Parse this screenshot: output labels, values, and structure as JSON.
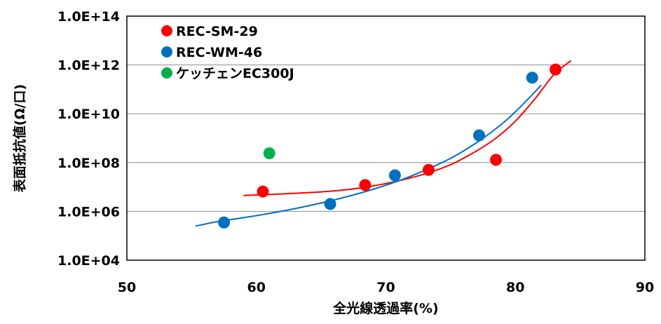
{
  "chart_data": {
    "type": "scatter",
    "title": "",
    "xlabel": "全光線透過率(%)",
    "ylabel": "表面抵抗値(Ω/口)",
    "xlim": [
      50,
      90
    ],
    "ylim": [
      10000,
      100000000000000
    ],
    "yscale": "log",
    "x_ticks": [
      50,
      60,
      70,
      80,
      90
    ],
    "x_tick_labels": [
      "50",
      "60",
      "70",
      "80",
      "90"
    ],
    "y_ticks": [
      10000,
      1000000,
      100000000,
      10000000000,
      1000000000000,
      100000000000000
    ],
    "y_tick_labels": [
      "1.0E+04",
      "1.0E+06",
      "1.0E+08",
      "1.0E+10",
      "1.0E+12",
      "1.0E+14"
    ],
    "grid": "horizontal",
    "legend_position": "top-left",
    "series": [
      {
        "name": "REC-SM-29",
        "color": "#ff0000",
        "points": [
          [
            60.5,
            6500000
          ],
          [
            68.4,
            12000000
          ],
          [
            73.3,
            50000000
          ],
          [
            78.5,
            130000000
          ],
          [
            83.1,
            650000000000
          ]
        ],
        "fit_x": [
          59,
          62,
          65,
          67,
          69,
          71,
          73,
          75,
          77,
          78.5,
          80,
          81.5,
          83,
          84.3
        ],
        "fit_y": [
          4500000,
          5200000,
          6300000,
          7800000,
          11000000,
          18000000,
          34000000,
          82000000,
          300000000,
          1000000000,
          5000000000,
          40000000000,
          420000000000,
          1500000000000
        ]
      },
      {
        "name": "REC-WM-46",
        "color": "#0070c0",
        "points": [
          [
            57.5,
            350000
          ],
          [
            65.7,
            2000000
          ],
          [
            70.7,
            30000000
          ],
          [
            77.2,
            1300000000
          ],
          [
            81.3,
            300000000000
          ]
        ],
        "fit_x": [
          55.3,
          57,
          59,
          61,
          63,
          65,
          67,
          69,
          71,
          73,
          75,
          77,
          79,
          80.5,
          82
        ],
        "fit_y": [
          250000,
          380000,
          550000,
          820000,
          1300000,
          2200000,
          4000000,
          8000000,
          18000000,
          48000000,
          150000000,
          650000000,
          4000000000,
          22000000000,
          150000000000
        ]
      },
      {
        "name": "ケッチェンEC300J",
        "color": "#00b050",
        "points": [
          [
            61,
            240000000
          ]
        ]
      }
    ]
  }
}
